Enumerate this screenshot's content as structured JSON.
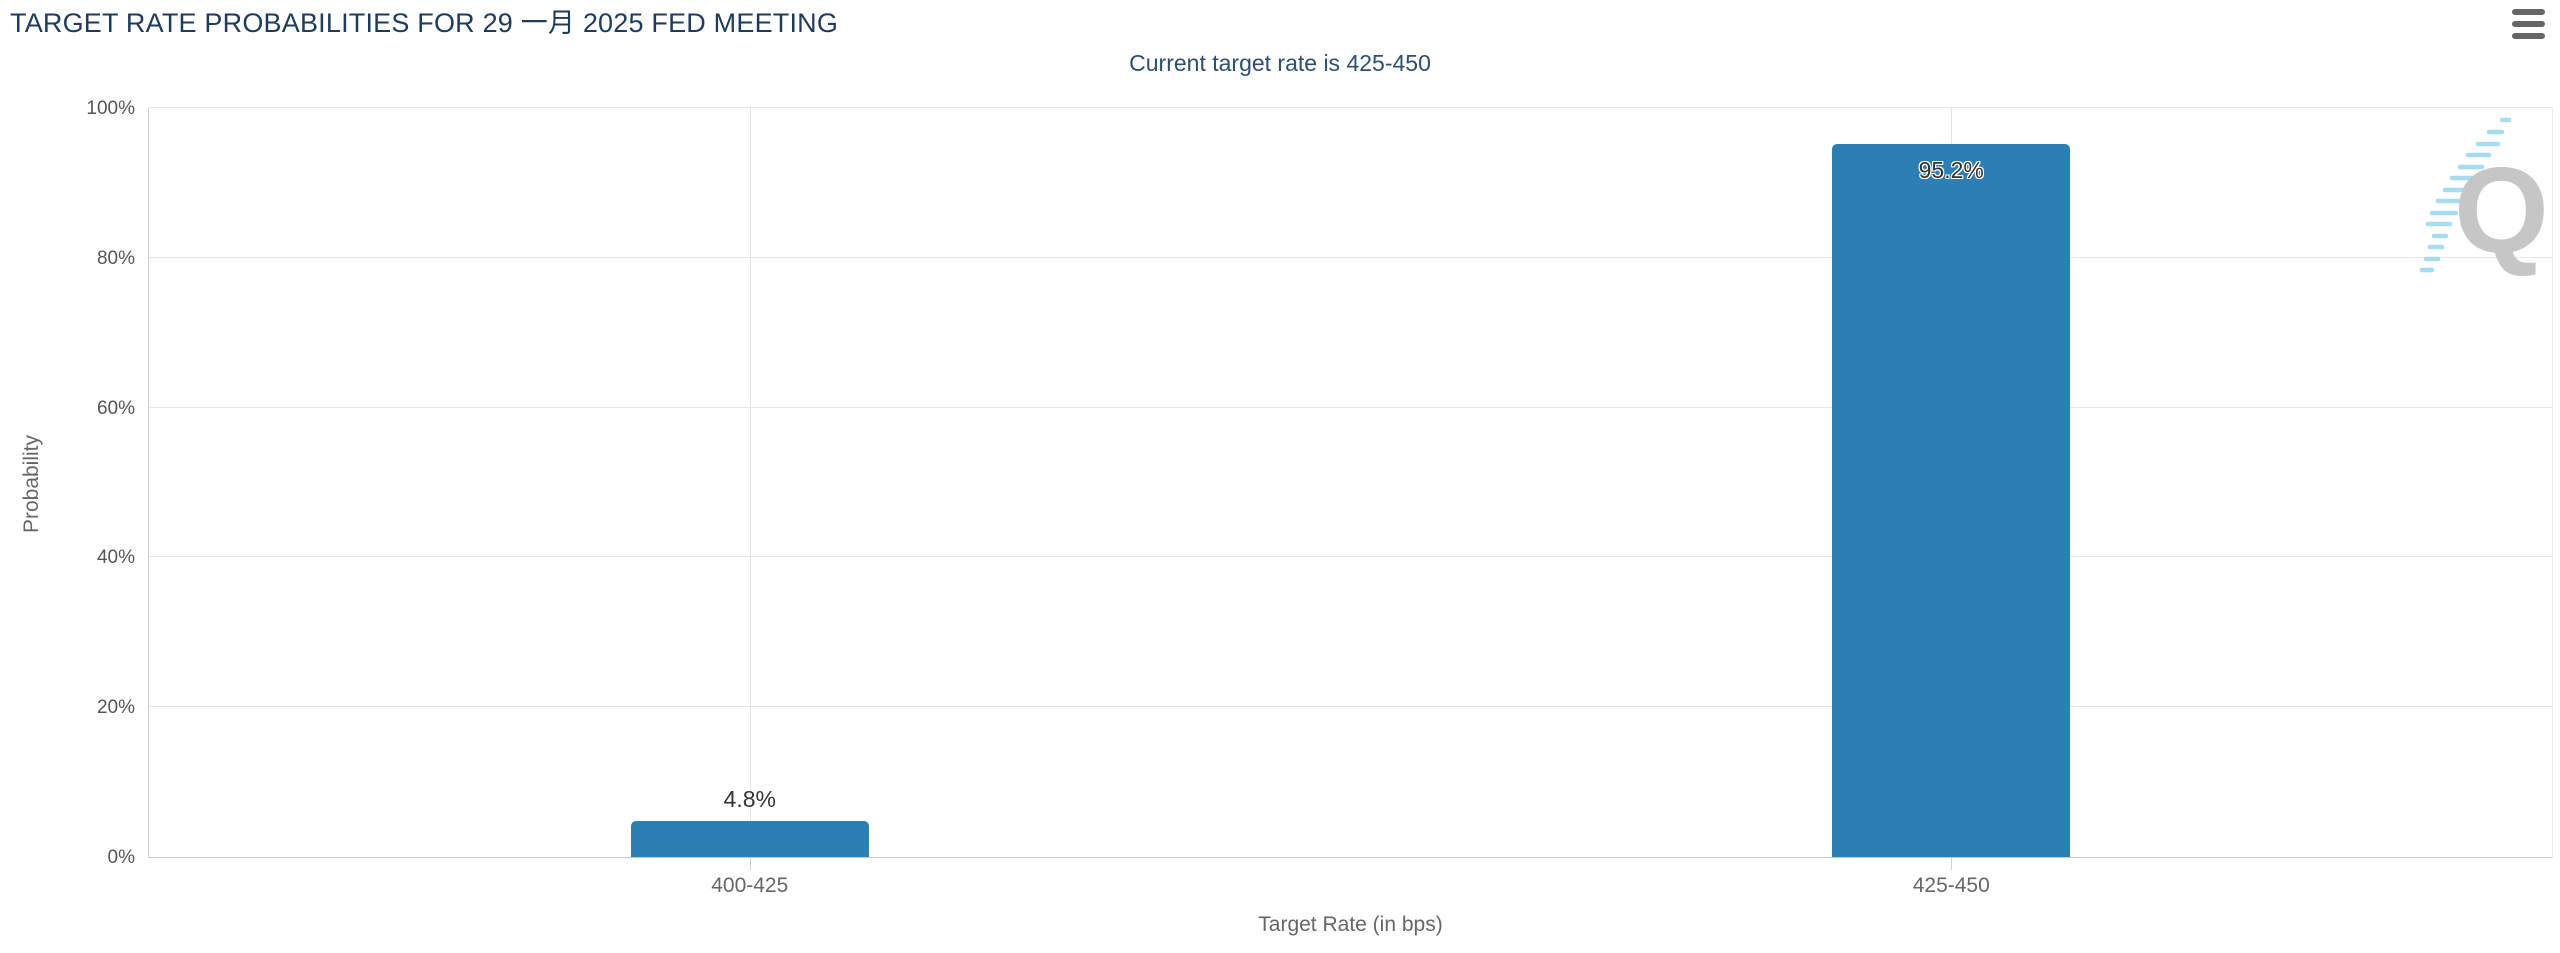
{
  "chart": {
    "title": "TARGET RATE PROBABILITIES FOR 29 一月 2025 FED MEETING",
    "subtitle": "Current target rate is 425-450",
    "export_menu_icon": "hamburger-icon",
    "watermark_icon": "quikstrike-q-logo"
  },
  "colors": {
    "title": "#1e3a5f",
    "subtitle": "#2e4d6f",
    "bar": "#2b7fb5",
    "grid": "#e6e6e6",
    "axis_line": "#ccd2dc",
    "axis_labels": "#666666",
    "data_label": "#333333",
    "export_icon": "#666666",
    "watermark_q": "#c6c6c6",
    "watermark_dashes": "#a6dcf1"
  },
  "chart_data": {
    "type": "bar",
    "title": "TARGET RATE PROBABILITIES FOR 29 一月 2025 FED MEETING",
    "subtitle": "Current target rate is 425-450",
    "categories": [
      "400-425",
      "425-450"
    ],
    "values": [
      4.8,
      95.2
    ],
    "value_labels": [
      "4.8%",
      "95.2%"
    ],
    "xlabel": "Target Rate (in bps)",
    "ylabel": "Probability",
    "ylim": [
      0,
      100
    ],
    "yticks": [
      0,
      20,
      40,
      60,
      80,
      100
    ],
    "ytick_suffix": "%",
    "grid": true,
    "legend_position": "none",
    "bar_color": "#2b7fb5"
  }
}
